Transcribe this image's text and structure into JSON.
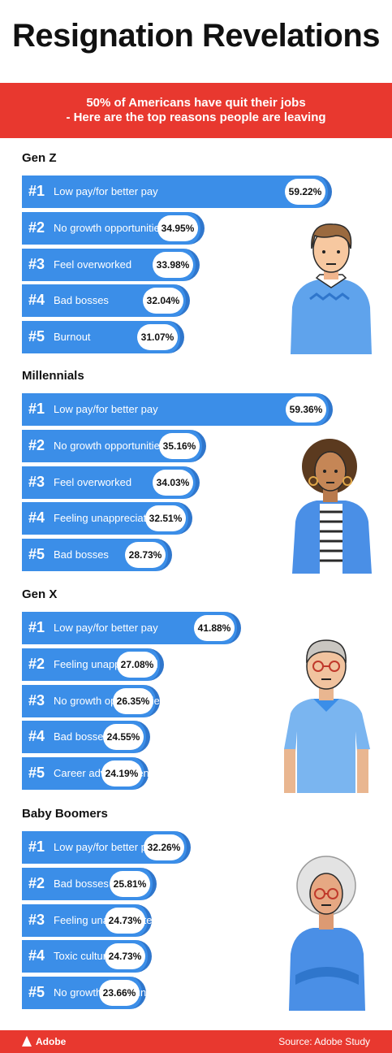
{
  "title": "Resignation Revelations",
  "banner": {
    "line1": "50% of Americans have quit their jobs",
    "line2": "- Here are the top reasons people are leaving"
  },
  "footer": {
    "brand": "Adobe",
    "source": "Source: Adobe Study"
  },
  "colors": {
    "accent_red": "#e8382f",
    "bar_blue": "#3b8ee8",
    "bar_blue_dark": "#2f76cc"
  },
  "chart_data": [
    {
      "type": "bar",
      "title": "Gen Z",
      "categories": [
        "Low pay/for better pay",
        "No growth opportunities",
        "Feel overworked",
        "Bad bosses",
        "Burnout"
      ],
      "ranks": [
        "#1",
        "#2",
        "#3",
        "#4",
        "#5"
      ],
      "values": [
        59.22,
        34.95,
        33.98,
        32.04,
        31.07
      ],
      "value_labels": [
        "59.22%",
        "34.95%",
        "33.98%",
        "32.04%",
        "31.07%"
      ]
    },
    {
      "type": "bar",
      "title": "Millennials",
      "categories": [
        "Low pay/for better pay",
        "No growth opportunities",
        "Feel overworked",
        "Feeling unappreciated",
        "Bad bosses"
      ],
      "ranks": [
        "#1",
        "#2",
        "#3",
        "#4",
        "#5"
      ],
      "values": [
        59.36,
        35.16,
        34.03,
        32.51,
        28.73
      ],
      "value_labels": [
        "59.36%",
        "35.16%",
        "34.03%",
        "32.51%",
        "28.73%"
      ]
    },
    {
      "type": "bar",
      "title": "Gen X",
      "categories": [
        "Low pay/for better pay",
        "Feeling unappreciated",
        "No growth opportunities",
        "Bad bosses",
        "Career advancement"
      ],
      "ranks": [
        "#1",
        "#2",
        "#3",
        "#4",
        "#5"
      ],
      "values": [
        41.88,
        27.08,
        26.35,
        24.55,
        24.19
      ],
      "value_labels": [
        "41.88%",
        "27.08%",
        "26.35%",
        "24.55%",
        "24.19%"
      ]
    },
    {
      "type": "bar",
      "title": "Baby Boomers",
      "categories": [
        "Low pay/for better pay",
        "Bad bosses",
        "Feeling unappreciated",
        "Toxic culture",
        "No growth opportunities"
      ],
      "ranks": [
        "#1",
        "#2",
        "#3",
        "#4",
        "#5"
      ],
      "values": [
        32.26,
        25.81,
        24.73,
        24.73,
        23.66
      ],
      "value_labels": [
        "32.26%",
        "25.81%",
        "24.73%",
        "24.73%",
        "23.66%"
      ]
    }
  ]
}
